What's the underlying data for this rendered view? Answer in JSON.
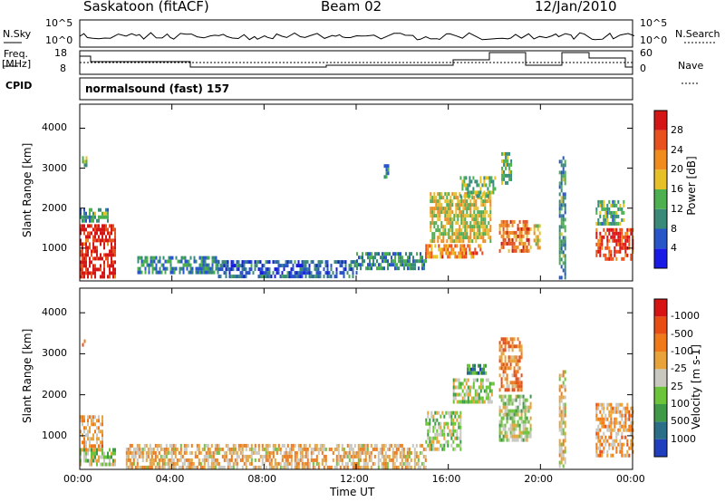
{
  "header": {
    "station": "Saskatoon (fitACF)",
    "beam": "Beam 02",
    "date": "12/Jan/2010"
  },
  "noise_panel": {
    "left_label": "N.Sky",
    "left_ticks": [
      "10^5",
      "10^0"
    ],
    "right_ticks": [
      "10^5",
      "10^0"
    ],
    "right_label": "N.Search"
  },
  "freq_panel": {
    "left_label_1": "Freq.",
    "left_label_2": "[MHz]",
    "left_ticks": [
      "18",
      "8"
    ],
    "right_ticks": [
      "60",
      "0"
    ],
    "right_label": "Nave",
    "cpid_label": "CPID"
  },
  "cpid_panel": {
    "text": "normalsound (fast) 157"
  },
  "x_axis": {
    "label": "Time UT",
    "ticks": [
      "00:00",
      "04:00",
      "08:00",
      "12:00",
      "16:00",
      "20:00",
      "00:00"
    ]
  },
  "chart_data": [
    {
      "type": "heatmap",
      "title": "",
      "xlabel": "Time UT",
      "ylabel": "Slant Range [km]",
      "xlim": [
        0,
        24
      ],
      "ylim": [
        180,
        4600
      ],
      "y_ticks": [
        1000,
        2000,
        3000,
        4000
      ],
      "colorbar": {
        "label": "Power [dB]",
        "ticks": [
          "4",
          "8",
          "12",
          "16",
          "20",
          "24",
          "28"
        ],
        "colors": [
          "#1a1ae6",
          "#2856c8",
          "#3a8a7a",
          "#4caf50",
          "#e6c027",
          "#f08c1e",
          "#e8501e",
          "#d41616"
        ]
      },
      "regions": [
        {
          "t0": 0.0,
          "t1": 1.5,
          "r0": 300,
          "r1": 1600,
          "level": 0.92
        },
        {
          "t0": 0.0,
          "t1": 1.2,
          "r0": 1700,
          "r1": 2000,
          "level": 0.35
        },
        {
          "t0": 0.1,
          "t1": 0.3,
          "r0": 3100,
          "r1": 3300,
          "level": 0.4
        },
        {
          "t0": 2.5,
          "t1": 6.0,
          "r0": 400,
          "r1": 800,
          "level": 0.3
        },
        {
          "t0": 6.0,
          "t1": 12.0,
          "r0": 250,
          "r1": 700,
          "level": 0.22
        },
        {
          "t0": 12.0,
          "t1": 15.0,
          "r0": 450,
          "r1": 900,
          "level": 0.32
        },
        {
          "t0": 13.2,
          "t1": 13.4,
          "r0": 2800,
          "r1": 3100,
          "level": 0.3
        },
        {
          "t0": 15.0,
          "t1": 17.5,
          "r0": 800,
          "r1": 1100,
          "level": 0.72
        },
        {
          "t0": 15.2,
          "t1": 17.8,
          "r0": 1200,
          "r1": 2400,
          "level": 0.55
        },
        {
          "t0": 16.5,
          "t1": 18.0,
          "r0": 2300,
          "r1": 2800,
          "level": 0.45
        },
        {
          "t0": 18.2,
          "t1": 19.6,
          "r0": 900,
          "r1": 1700,
          "level": 0.75
        },
        {
          "t0": 18.3,
          "t1": 18.7,
          "r0": 2600,
          "r1": 3400,
          "level": 0.4
        },
        {
          "t0": 19.7,
          "t1": 20.0,
          "r0": 1000,
          "r1": 1600,
          "level": 0.55
        },
        {
          "t0": 20.8,
          "t1": 21.1,
          "r0": 300,
          "r1": 3300,
          "level": 0.35
        },
        {
          "t0": 22.4,
          "t1": 24.0,
          "r0": 700,
          "r1": 1500,
          "level": 0.88
        },
        {
          "t0": 22.4,
          "t1": 23.6,
          "r0": 1600,
          "r1": 2200,
          "level": 0.4
        }
      ]
    },
    {
      "type": "heatmap",
      "title": "",
      "xlabel": "Time UT",
      "ylabel": "Slant Range [km]",
      "xlim": [
        0,
        24
      ],
      "ylim": [
        180,
        4600
      ],
      "y_ticks": [
        1000,
        2000,
        3000,
        4000
      ],
      "colorbar": {
        "label": "Velocity [m s-1]",
        "ticks": [
          "1000",
          "500",
          "100",
          "25",
          "-25",
          "-100",
          "-500",
          "-1000"
        ],
        "colors": [
          "#1f3fbf",
          "#2a6e88",
          "#3f9a48",
          "#6cc43a",
          "#c8c8c0",
          "#e8a43a",
          "#f07a1a",
          "#e84e14",
          "#d61414"
        ]
      },
      "regions": [
        {
          "t0": 0.0,
          "t1": 1.0,
          "r0": 700,
          "r1": 1500,
          "level": 0.62
        },
        {
          "t0": 0.0,
          "t1": 1.5,
          "r0": 300,
          "r1": 700,
          "level": 0.45
        },
        {
          "t0": 0.1,
          "t1": 0.3,
          "r0": 3200,
          "r1": 3350,
          "level": 0.8
        },
        {
          "t0": 2.0,
          "t1": 15.0,
          "r0": 250,
          "r1": 800,
          "level": 0.6
        },
        {
          "t0": 15.0,
          "t1": 16.5,
          "r0": 700,
          "r1": 1600,
          "level": 0.45
        },
        {
          "t0": 16.2,
          "t1": 18.0,
          "r0": 1800,
          "r1": 2400,
          "level": 0.45
        },
        {
          "t0": 16.8,
          "t1": 17.6,
          "r0": 2500,
          "r1": 2750,
          "level": 0.25
        },
        {
          "t0": 18.2,
          "t1": 19.6,
          "r0": 900,
          "r1": 2000,
          "level": 0.45
        },
        {
          "t0": 18.2,
          "t1": 19.2,
          "r0": 2100,
          "r1": 3400,
          "level": 0.7
        },
        {
          "t0": 20.8,
          "t1": 21.1,
          "r0": 300,
          "r1": 2600,
          "level": 0.55
        },
        {
          "t0": 22.4,
          "t1": 24.0,
          "r0": 500,
          "r1": 1800,
          "level": 0.62
        }
      ]
    }
  ]
}
